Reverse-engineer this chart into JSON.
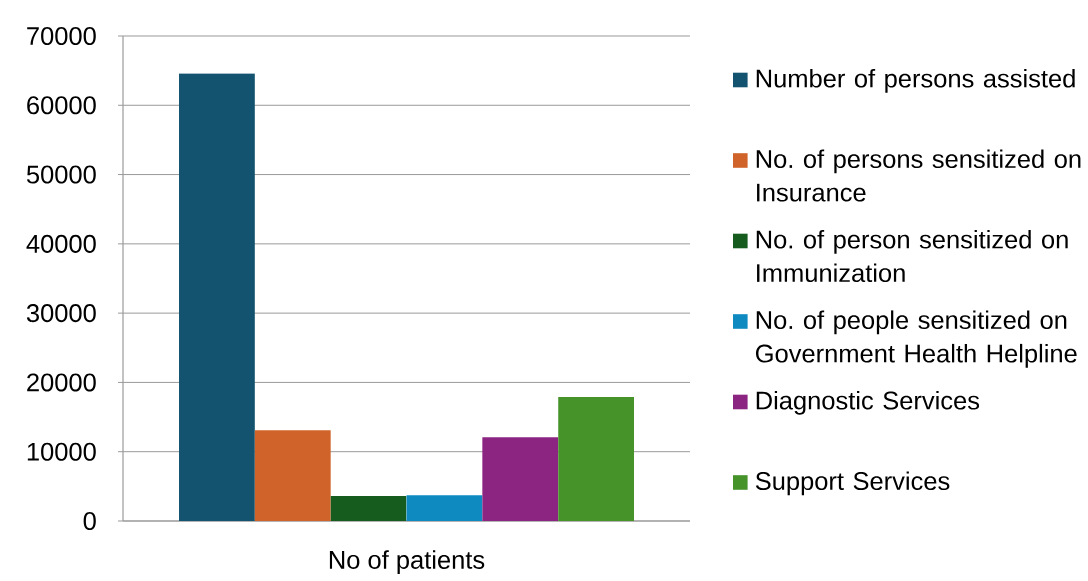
{
  "chart_data": {
    "type": "bar",
    "categories": [
      "No of patients"
    ],
    "series": [
      {
        "name": "Number of persons assisted",
        "color": "#135370",
        "values": [
          64600
        ]
      },
      {
        "name": "No. of persons sensitized on Insurance",
        "color": "#D06329",
        "values": [
          13100
        ]
      },
      {
        "name": "No. of person sensitized on Immunization",
        "color": "#165C1E",
        "values": [
          3600
        ]
      },
      {
        "name": "No. of people sensitized on Government Health Helpline",
        "color": "#0E8AC0",
        "values": [
          3700
        ]
      },
      {
        "name": "Diagnostic Services",
        "color": "#8B2581",
        "values": [
          12100
        ]
      },
      {
        "name": "Support Services",
        "color": "#46932A",
        "values": [
          17900
        ]
      }
    ],
    "ylim": [
      0,
      70000
    ],
    "yticks": [
      0,
      10000,
      20000,
      30000,
      40000,
      50000,
      60000,
      70000
    ],
    "grid": "y",
    "legend": "right"
  }
}
